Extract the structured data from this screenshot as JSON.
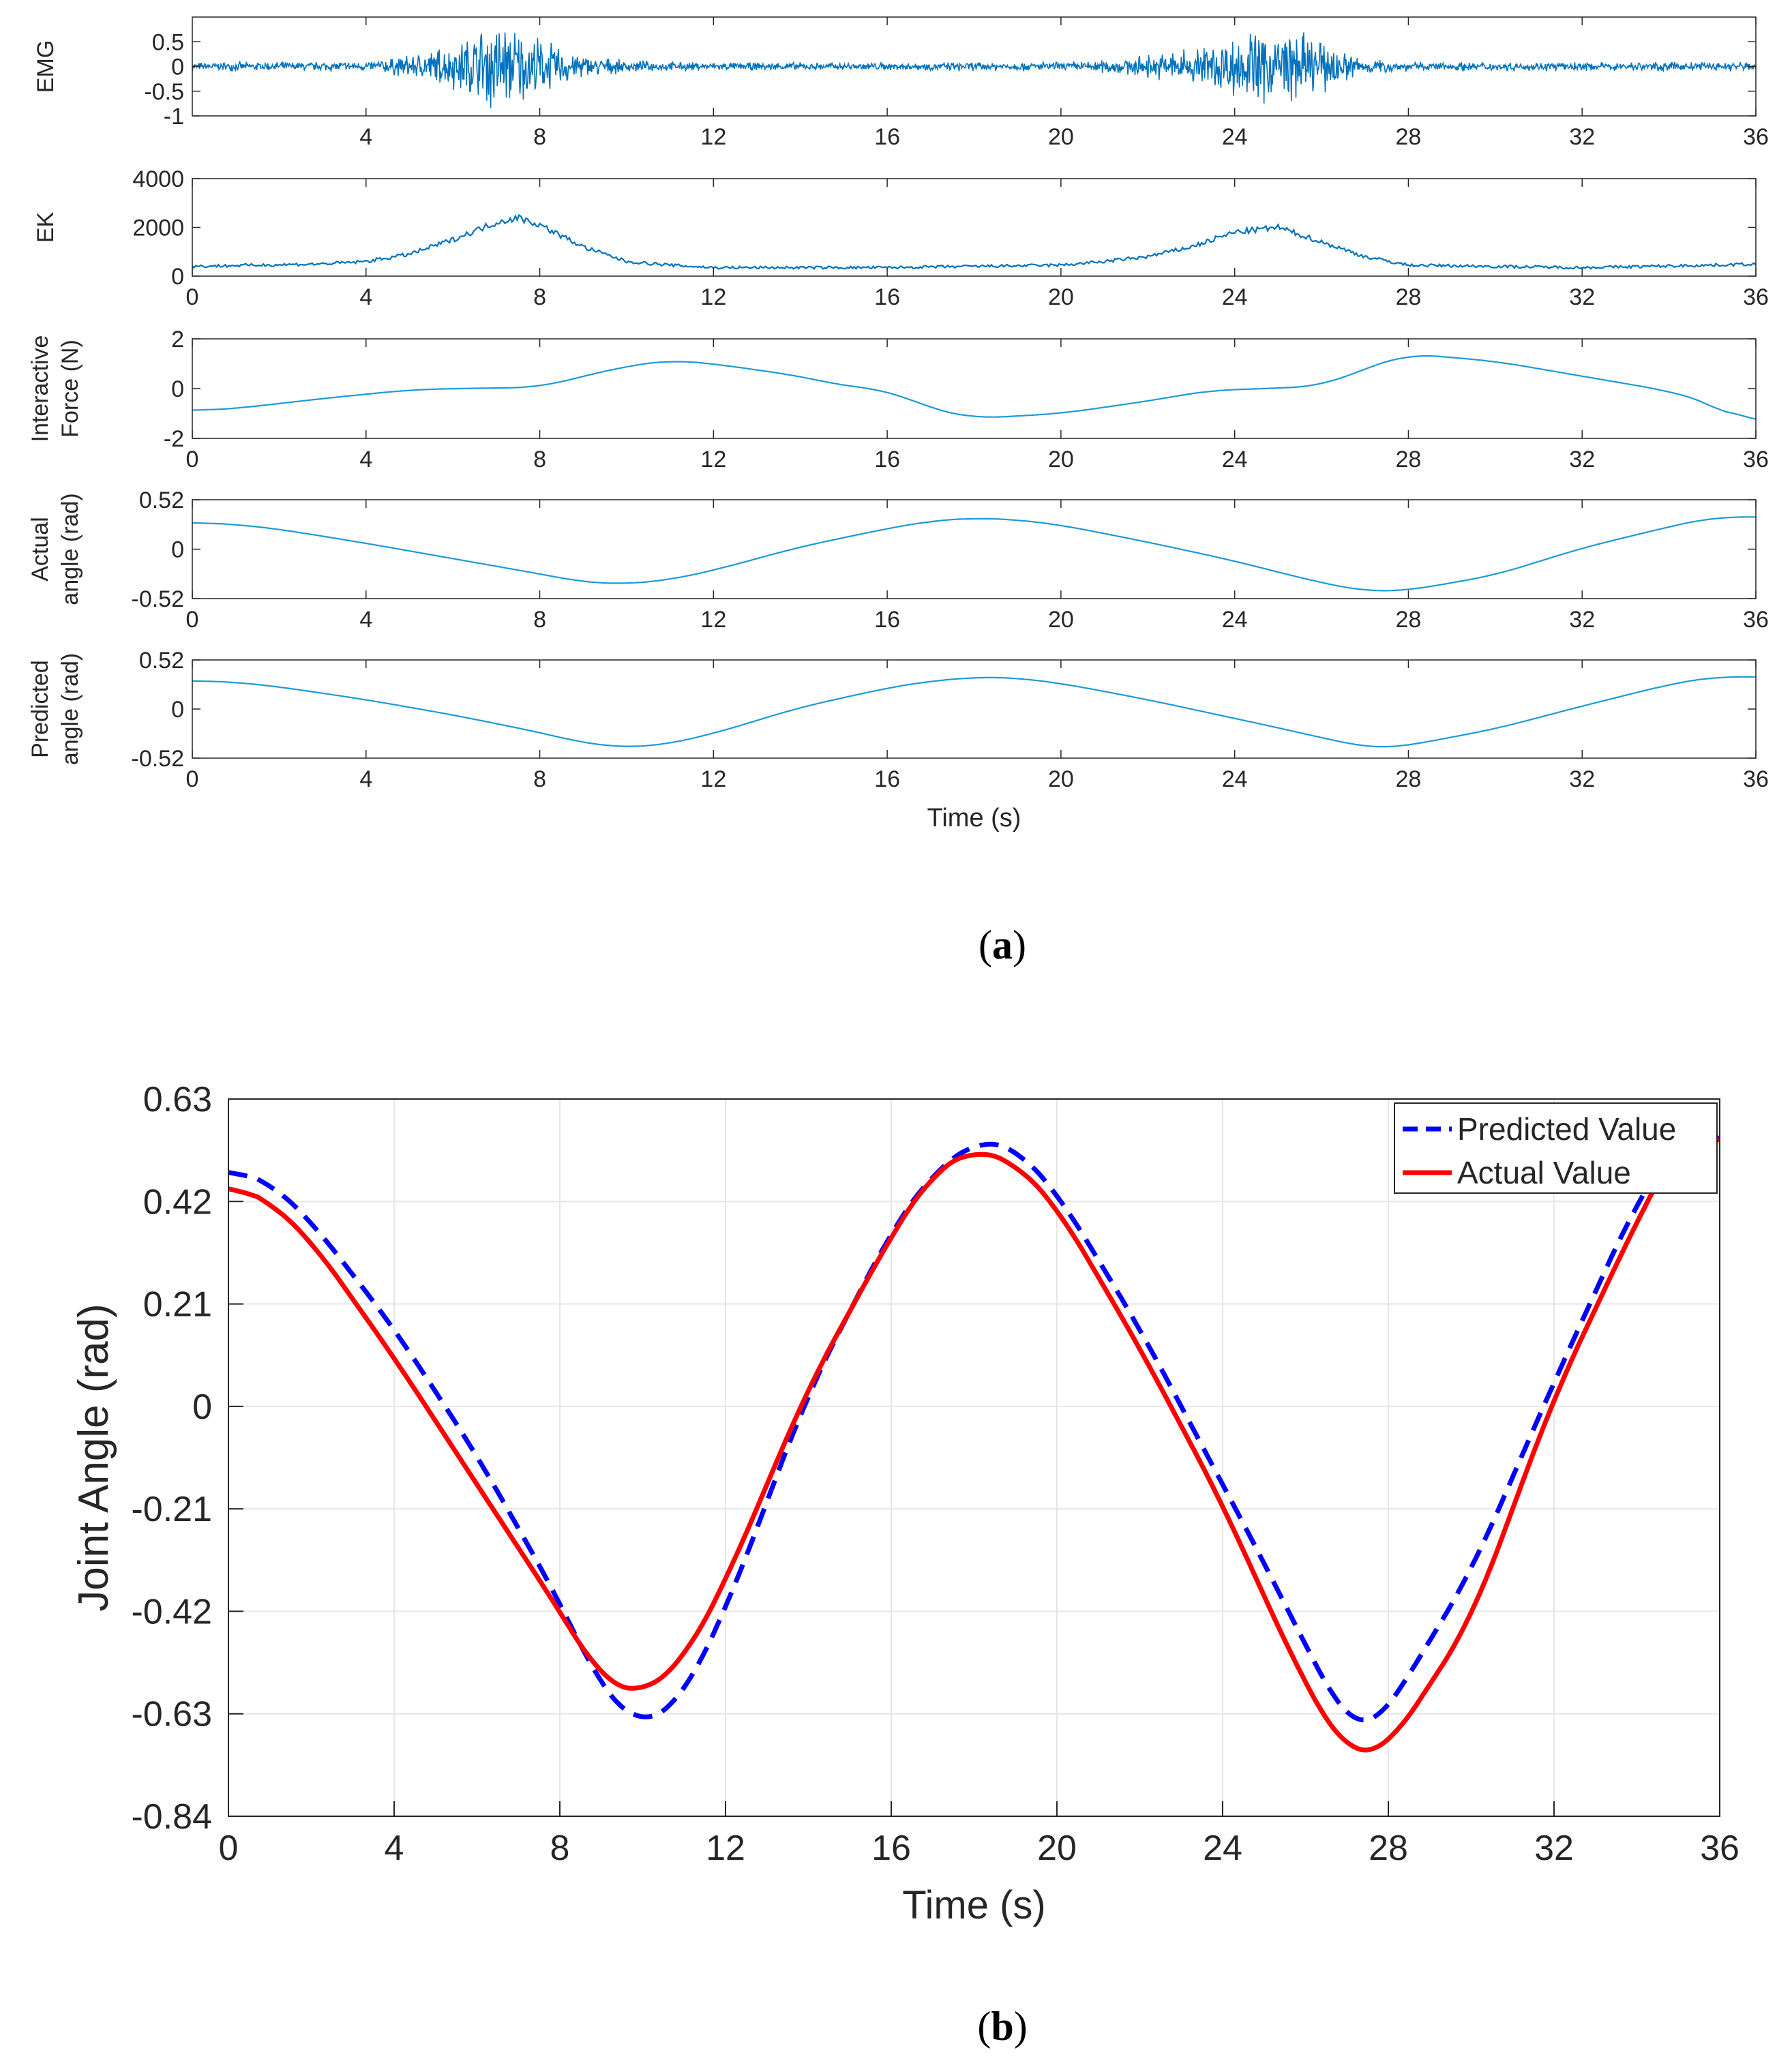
{
  "captions": {
    "a_open": "(",
    "a_letter": "a",
    "a_close": ")",
    "b_open": "(",
    "b_letter": "b",
    "b_close": ")"
  },
  "colors": {
    "signal": "#0072bd",
    "signal_light": "#1c9ad8",
    "predicted": "#0000ff",
    "actual": "#ff0000",
    "grid": "#e6e6e6",
    "axis": "#262626"
  },
  "chart_data": [
    {
      "type": "line",
      "panel": "a1",
      "ylabel": "EMG",
      "xlabel": "",
      "xlim": [
        0,
        36
      ],
      "ylim": [
        -1,
        1
      ],
      "xticks": [
        "4",
        "8",
        "12",
        "16",
        "20",
        "24",
        "28",
        "32",
        "36"
      ],
      "yticks": [
        "0.5",
        "0",
        "-0.5",
        "-1"
      ],
      "series": [
        {
          "name": "EMG",
          "kind": "noise",
          "baseline": 0,
          "envelope_x": [
            0,
            4,
            5,
            6,
            7,
            8,
            9,
            10,
            12,
            16,
            20,
            21,
            22,
            23,
            24,
            25,
            26,
            27,
            28,
            32,
            36
          ],
          "envelope_y": [
            0.07,
            0.09,
            0.2,
            0.4,
            0.85,
            0.5,
            0.2,
            0.1,
            0.07,
            0.07,
            0.08,
            0.12,
            0.2,
            0.35,
            0.55,
            0.75,
            0.45,
            0.15,
            0.08,
            0.07,
            0.09
          ]
        }
      ]
    },
    {
      "type": "line",
      "panel": "a2",
      "ylabel": "EK",
      "xlabel": "",
      "xlim": [
        0,
        36
      ],
      "ylim": [
        0,
        4000
      ],
      "xticks": [
        "0",
        "4",
        "8",
        "12",
        "16",
        "20",
        "24",
        "28",
        "32",
        "36"
      ],
      "yticks": [
        "4000",
        "2000",
        "0"
      ],
      "series": [
        {
          "name": "EK",
          "kind": "noisy_line",
          "x": [
            0,
            3,
            4,
            5,
            6,
            7,
            7.5,
            8,
            9,
            10,
            11,
            12,
            16,
            20,
            21,
            22,
            23,
            24,
            25,
            26,
            27,
            28,
            32,
            35,
            36
          ],
          "y": [
            400,
            500,
            600,
            900,
            1500,
            2200,
            2400,
            2100,
            1200,
            600,
            450,
            350,
            350,
            450,
            600,
            800,
            1200,
            1800,
            2000,
            1400,
            800,
            450,
            350,
            450,
            500
          ],
          "noise": 170
        }
      ]
    },
    {
      "type": "line",
      "panel": "a3",
      "ylabel": "Interactive Force (N)",
      "ylabel_lines": [
        "Interactive",
        "Force (N)"
      ],
      "xlabel": "",
      "xlim": [
        0,
        36
      ],
      "ylim": [
        -2,
        2
      ],
      "xticks": [
        "0",
        "4",
        "8",
        "12",
        "16",
        "20",
        "24",
        "28",
        "32",
        "36"
      ],
      "yticks": [
        "2",
        "0",
        "-2"
      ],
      "series": [
        {
          "name": "Interactive Force",
          "x": [
            0,
            1,
            3,
            5,
            6,
            8,
            9,
            10,
            11,
            12,
            14,
            15,
            16,
            17,
            18,
            20,
            22,
            23.5,
            24,
            26,
            27,
            28,
            30,
            32,
            34,
            35,
            35.5,
            36
          ],
          "y": [
            -0.9,
            -0.8,
            -0.4,
            -0.05,
            0,
            0.05,
            0.5,
            0.9,
            1.15,
            1.0,
            0.5,
            0.1,
            -0.05,
            -0.8,
            -1.2,
            -1.0,
            -0.5,
            -0.05,
            -0.05,
            0.1,
            0.8,
            1.4,
            1.1,
            0.5,
            -0.1,
            -0.6,
            -1.25,
            -1.3
          ]
        }
      ]
    },
    {
      "type": "line",
      "panel": "a4",
      "ylabel": "Actual angle (rad)",
      "ylabel_lines": [
        "Actual",
        "angle (rad)"
      ],
      "xlabel": "",
      "xlim": [
        0,
        36
      ],
      "ylim": [
        -0.52,
        0.52
      ],
      "xticks": [
        "0",
        "4",
        "8",
        "12",
        "16",
        "20",
        "24",
        "28",
        "32",
        "36"
      ],
      "yticks": [
        "0.52",
        "0",
        "-0.52"
      ],
      "series": [
        {
          "name": "Actual angle",
          "shape": "actual",
          "scale": 0.62
        }
      ]
    },
    {
      "type": "line",
      "panel": "a5",
      "ylabel": "Predicted angle (rad)",
      "ylabel_lines": [
        "Predicted",
        "angle (rad)"
      ],
      "xlabel": "Time (s)",
      "xlim": [
        0,
        36
      ],
      "ylim": [
        -0.52,
        0.52
      ],
      "xticks": [
        "0",
        "4",
        "8",
        "12",
        "16",
        "20",
        "24",
        "28",
        "32",
        "36"
      ],
      "yticks": [
        "0.52",
        "0",
        "-0.52"
      ],
      "series": [
        {
          "name": "Predicted angle",
          "shape": "predicted",
          "scale": 0.62
        }
      ]
    },
    {
      "type": "line",
      "panel": "b",
      "ylabel": "Joint Angle (rad)",
      "xlabel": "Time (s)",
      "xlim": [
        0,
        36
      ],
      "ylim": [
        -0.84,
        0.63
      ],
      "grid": true,
      "legend": "top-right",
      "xticks": [
        "0",
        "4",
        "8",
        "12",
        "16",
        "20",
        "24",
        "28",
        "32",
        "36"
      ],
      "yticks": [
        "0.63",
        "0.42",
        "0.21",
        "0",
        "-0.21",
        "-0.42",
        "-0.63",
        "-0.84"
      ],
      "series": [
        {
          "name": "Predicted Value",
          "style": "dashed",
          "x": [
            0,
            1,
            2,
            4,
            6,
            8,
            9,
            9.8,
            10.5,
            11,
            12,
            14,
            16,
            17,
            18,
            18.3,
            19,
            20,
            22,
            24,
            25,
            26,
            27,
            27.5,
            28,
            30,
            32,
            34,
            35,
            36
          ],
          "y": [
            0.49,
            0.46,
            0.38,
            0.16,
            -0.1,
            -0.4,
            -0.58,
            -0.65,
            -0.64,
            -0.59,
            -0.42,
            0.03,
            0.36,
            0.48,
            0.54,
            0.55,
            0.53,
            0.44,
            0.16,
            -0.16,
            -0.32,
            -0.49,
            -0.65,
            -0.67,
            -0.62,
            -0.34,
            0.05,
            0.42,
            0.55,
            0.55
          ]
        },
        {
          "name": "Actual Value",
          "style": "solid",
          "x": [
            0,
            1,
            2,
            4,
            6,
            8,
            9,
            9.7,
            10.2,
            11,
            12,
            14,
            16,
            17,
            18,
            19,
            20,
            22,
            24,
            25,
            26,
            26.8,
            27.3,
            28,
            30,
            32,
            34,
            35,
            36
          ],
          "y": [
            0.46,
            0.42,
            0.34,
            0.1,
            -0.16,
            -0.42,
            -0.56,
            -0.59,
            -0.58,
            -0.52,
            -0.36,
            0.04,
            0.35,
            0.48,
            0.53,
            0.5,
            0.41,
            0.12,
            -0.2,
            -0.39,
            -0.57,
            -0.69,
            -0.72,
            -0.7,
            -0.44,
            0.02,
            0.38,
            0.54,
            0.55
          ]
        }
      ]
    }
  ]
}
